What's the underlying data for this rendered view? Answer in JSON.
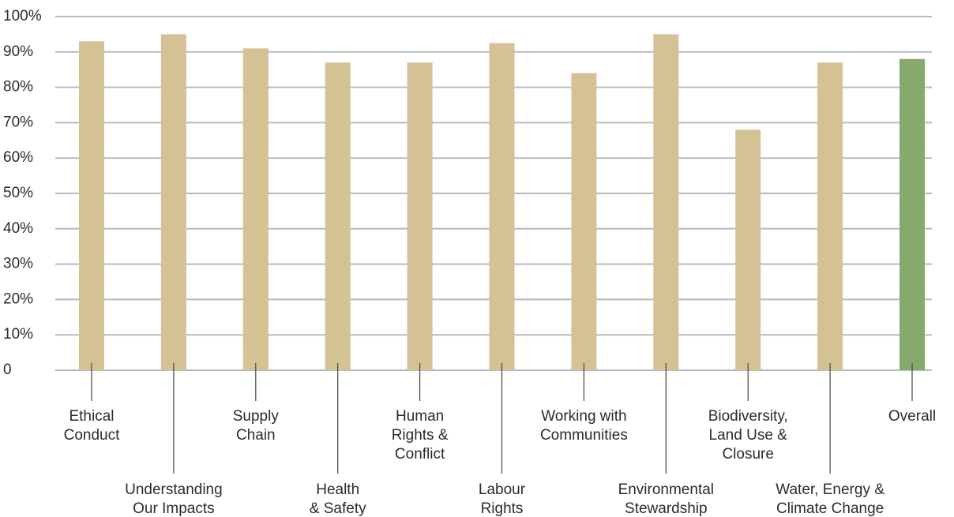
{
  "chart_data": {
    "type": "bar",
    "categories": [
      "Ethical\nConduct",
      "Understanding\nOur Impacts",
      "Supply\nChain",
      "Health\n& Safety",
      "Human\nRights &\nConflict",
      "Labour\nRights",
      "Working with\nCommunities",
      "Environmental\nStewardship",
      "Biodiversity,\nLand Use &\nClosure",
      "Water, Energy &\nClimate Change",
      "Overall"
    ],
    "values": [
      93,
      95,
      91,
      87,
      87,
      92.5,
      84,
      95,
      68,
      87,
      88
    ],
    "colors": [
      "#d4c194",
      "#d4c194",
      "#d4c194",
      "#d4c194",
      "#d4c194",
      "#d4c194",
      "#d4c194",
      "#d4c194",
      "#d4c194",
      "#d4c194",
      "#87a96b"
    ],
    "ylim": [
      0,
      100
    ],
    "yticks": [
      0,
      {
        "value": 10,
        "label": "10%"
      },
      {
        "value": 20,
        "label": "20%"
      },
      {
        "value": 30,
        "label": "30%"
      },
      {
        "value": 40,
        "label": "40%"
      },
      {
        "value": 50,
        "label": "50%"
      },
      {
        "value": 60,
        "label": "60%"
      },
      {
        "value": 70,
        "label": "70%"
      },
      {
        "value": 80,
        "label": "80%"
      },
      {
        "value": 90,
        "label": "90%"
      },
      {
        "value": 100,
        "label": "100%"
      }
    ],
    "grid": true
  }
}
